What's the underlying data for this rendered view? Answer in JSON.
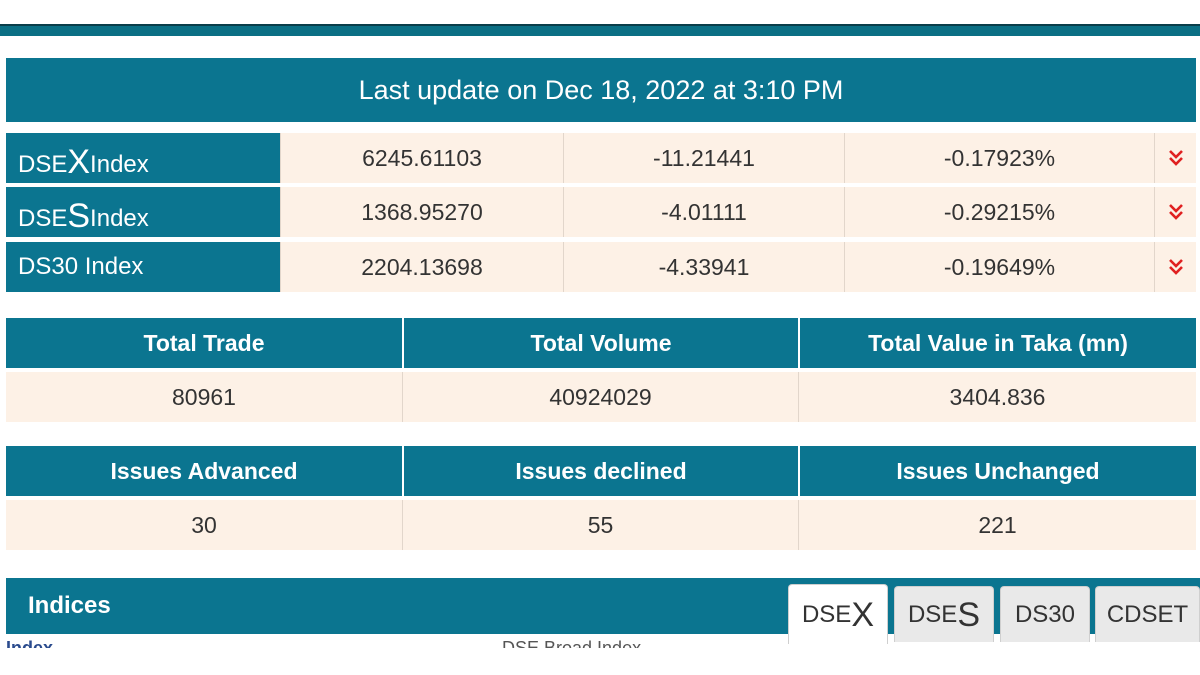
{
  "update_banner": "Last update on Dec 18, 2022 at 3:10 PM",
  "indices": [
    {
      "prefix": "DSE",
      "big": "X",
      "suffix": " Index",
      "value": "6245.61103",
      "change": "-11.21441",
      "percent": "-0.17923%",
      "trend_icon": "double-chevron-down-icon"
    },
    {
      "prefix": "DSE",
      "big": "S",
      "suffix": " Index",
      "value": "1368.95270",
      "change": "-4.01111",
      "percent": "-0.29215%",
      "trend_icon": "double-chevron-down-icon"
    },
    {
      "prefix": "DS30 Index",
      "big": "",
      "suffix": "",
      "value": "2204.13698",
      "change": "-4.33941",
      "percent": "-0.19649%",
      "trend_icon": "double-chevron-down-icon"
    }
  ],
  "totals": {
    "headers": [
      "Total Trade",
      "Total Volume",
      "Total Value in Taka (mn)"
    ],
    "values": [
      "80961",
      "40924029",
      "3404.836"
    ]
  },
  "issues": {
    "headers": [
      "Issues Advanced",
      "Issues declined",
      "Issues Unchanged"
    ],
    "values": [
      "30",
      "55",
      "221"
    ]
  },
  "indices_section": {
    "title": "Indices",
    "tabs": [
      {
        "prefix": "DSE",
        "big": "X",
        "active": true
      },
      {
        "prefix": "DSE",
        "big": "S",
        "active": false
      },
      {
        "prefix": "DS30",
        "big": "",
        "active": false
      },
      {
        "prefix": "CDSET",
        "big": "",
        "active": false
      }
    ],
    "sub_header": [
      "Index",
      "DSE Broad Index"
    ]
  },
  "colors": {
    "header_bg": "#0b7590",
    "cell_bg": "#fdf1e6",
    "down_arrow": "#e02020"
  }
}
